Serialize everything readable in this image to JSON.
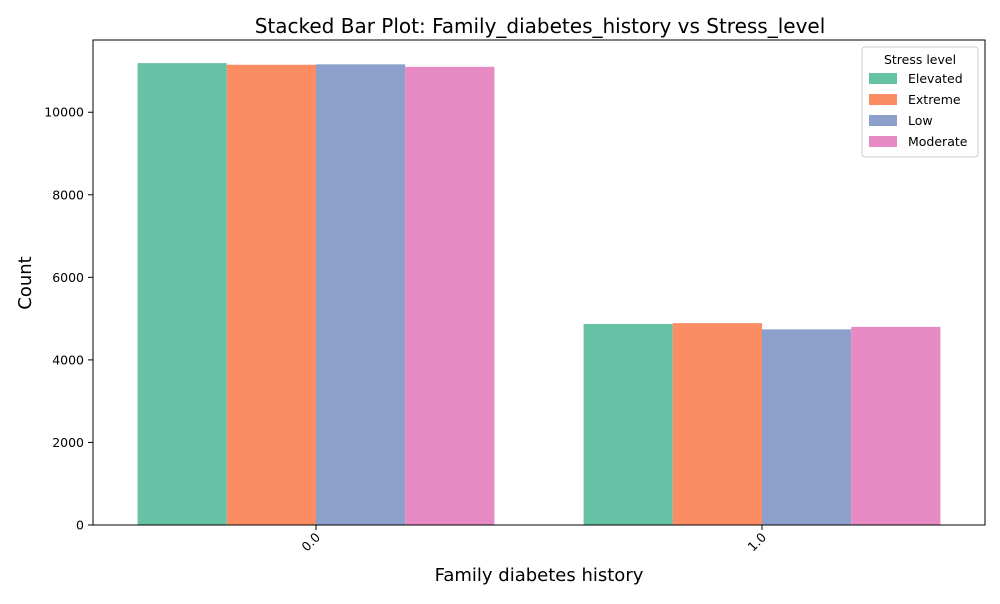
{
  "chart_data": {
    "type": "bar",
    "title": "Stacked Bar Plot: Family_diabetes_history vs Stress_level",
    "xlabel": "Family diabetes history",
    "ylabel": "Count",
    "categories": [
      "0.0",
      "1.0"
    ],
    "ylim": [
      0,
      11750
    ],
    "yticks": [
      0,
      2000,
      4000,
      6000,
      8000,
      10000
    ],
    "grid": false,
    "legend": {
      "title": "Stress level",
      "placement": "top-right"
    },
    "series": [
      {
        "name": "Elevated",
        "color": "#66c2a5",
        "values": [
          11190,
          4870
        ]
      },
      {
        "name": "Extreme",
        "color": "#fc8d62",
        "values": [
          11150,
          4890
        ]
      },
      {
        "name": "Low",
        "color": "#8da0cb",
        "values": [
          11160,
          4740
        ]
      },
      {
        "name": "Moderate",
        "color": "#e78ac3",
        "values": [
          11100,
          4800
        ]
      }
    ]
  }
}
